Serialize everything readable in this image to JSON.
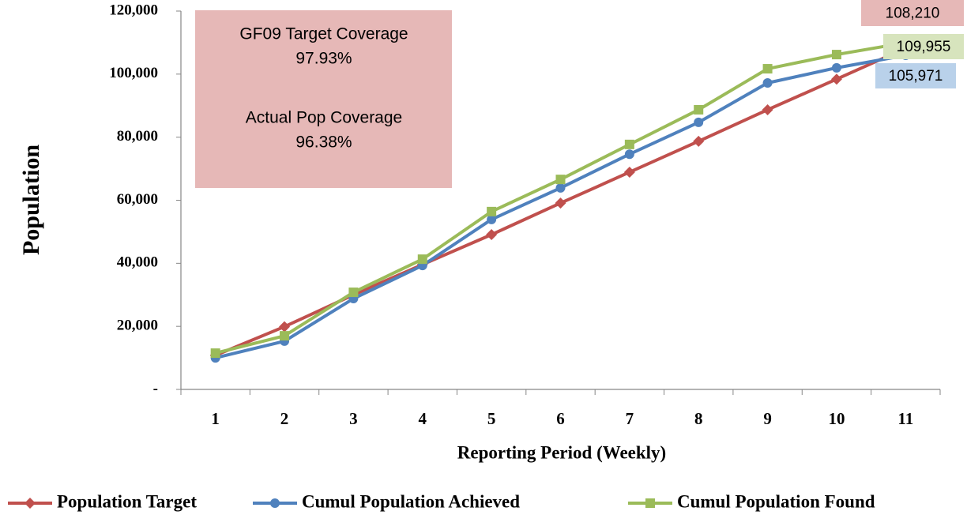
{
  "chart_data": {
    "type": "line",
    "x_label": "Reporting Period (Weekly)",
    "y_label": "Population",
    "categories": [
      "1",
      "2",
      "3",
      "4",
      "5",
      "6",
      "7",
      "8",
      "9",
      "10",
      "11"
    ],
    "series": [
      {
        "name": "Population Target",
        "color": "#c0504d",
        "marker": "diamond",
        "values": [
          10800,
          19900,
          30000,
          39600,
          49100,
          59100,
          68900,
          78700,
          88700,
          98400,
          108210
        ],
        "value_labels": [
          null,
          null,
          null,
          null,
          null,
          null,
          null,
          null,
          null,
          null,
          "108,210"
        ]
      },
      {
        "name": "Cumul Population Achieved",
        "color": "#4f81bd",
        "marker": "circle",
        "values": [
          10000,
          15300,
          28800,
          39300,
          53900,
          63900,
          74600,
          84700,
          97200,
          102000,
          105971
        ],
        "value_labels": [
          null,
          null,
          null,
          null,
          null,
          null,
          null,
          null,
          null,
          null,
          "105,971"
        ]
      },
      {
        "name": "Cumul Population Found",
        "color": "#9bbb59",
        "marker": "square",
        "values": [
          11500,
          17000,
          30800,
          41300,
          56400,
          66600,
          77700,
          88700,
          101700,
          106200,
          109955
        ],
        "value_labels": [
          null,
          null,
          null,
          null,
          null,
          null,
          null,
          null,
          null,
          null,
          "109,955"
        ]
      }
    ],
    "annotations": [
      "GF09 Target Coverage",
      "97.93%",
      "Actual Pop Coverage",
      "96.38%"
    ],
    "ylim": [
      0,
      120000
    ],
    "yticks": [
      {
        "value": 0,
        "label": "-"
      },
      {
        "value": 20000,
        "label": "20,000"
      },
      {
        "value": 40000,
        "label": "40,000"
      },
      {
        "value": 60000,
        "label": "60,000"
      },
      {
        "value": 80000,
        "label": "80,000"
      },
      {
        "value": 100000,
        "label": "100,000"
      },
      {
        "value": 120000,
        "label": "120,000"
      }
    ],
    "legend": "bottom"
  }
}
